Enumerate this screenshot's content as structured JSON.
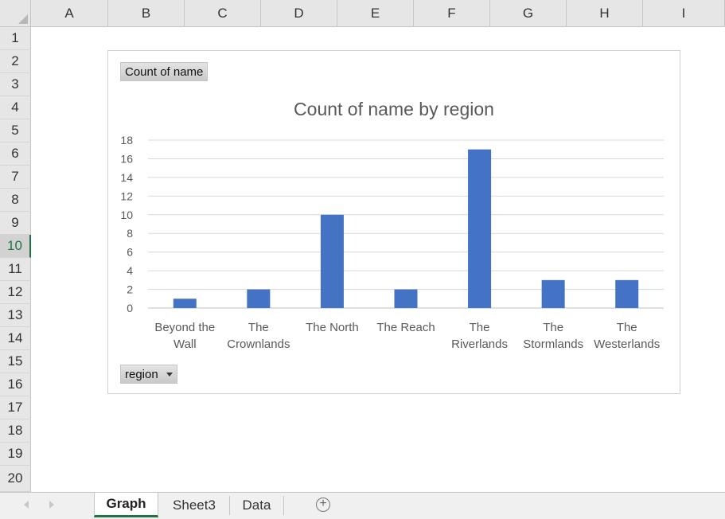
{
  "columns": [
    "A",
    "B",
    "C",
    "D",
    "E",
    "F",
    "G",
    "H",
    "I"
  ],
  "rows": [
    "1",
    "2",
    "3",
    "4",
    "5",
    "6",
    "7",
    "8",
    "9",
    "10",
    "11",
    "12",
    "13",
    "14",
    "15",
    "16",
    "17",
    "18",
    "19",
    "20"
  ],
  "selected_row": "10",
  "field_buttons": {
    "values": "Count of name",
    "axis": "region"
  },
  "sheet_tabs": [
    "Graph",
    "Sheet3",
    "Data"
  ],
  "active_tab": "Graph",
  "add_sheet_symbol": "+",
  "chart_data": {
    "type": "bar",
    "title": "Count of name by region",
    "categories": [
      [
        "Beyond the",
        "Wall"
      ],
      [
        "The",
        "Crownlands"
      ],
      [
        "The North"
      ],
      [
        "The Reach"
      ],
      [
        "The",
        "Riverlands"
      ],
      [
        "The",
        "Stormlands"
      ],
      [
        "The",
        "Westerlands"
      ]
    ],
    "values": [
      1,
      2,
      10,
      2,
      17,
      3,
      3
    ],
    "ylim": [
      0,
      18
    ],
    "yticks": [
      0,
      2,
      4,
      6,
      8,
      10,
      12,
      14,
      16,
      18
    ],
    "grid": true,
    "legend": "none",
    "bar_color": "#4472c4"
  }
}
